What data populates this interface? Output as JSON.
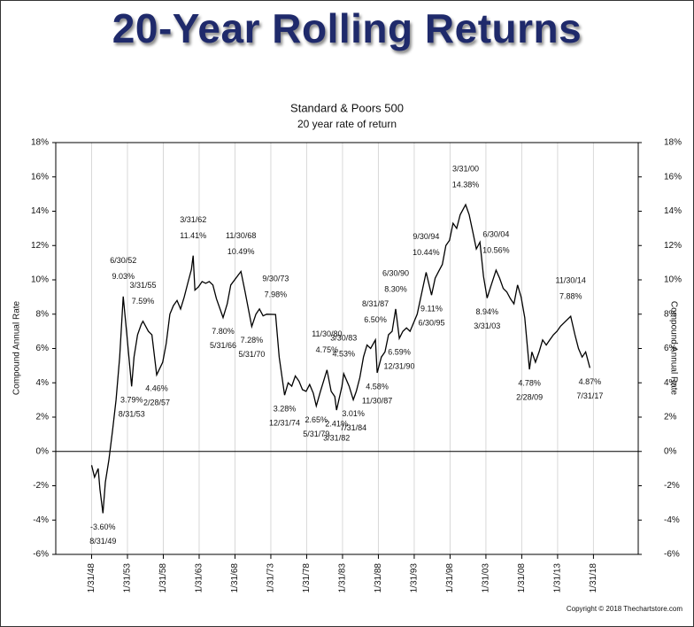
{
  "headline": "20-Year Rolling Returns",
  "chart_data": {
    "type": "line",
    "title": "Standard & Poors 500",
    "subtitle": "20 year rate of return",
    "ylabel": "Compound Annual Rate",
    "y2label": "Compound Annual Rate",
    "credit": "Copyright © 2018 Thechartstore.com",
    "xlim": [
      "1/31/43",
      "4/30/24"
    ],
    "xticks": [
      "1/31/48",
      "1/31/53",
      "1/31/58",
      "1/31/63",
      "1/31/68",
      "1/31/73",
      "1/31/78",
      "1/31/83",
      "1/31/88",
      "1/31/93",
      "1/31/98",
      "1/31/03",
      "1/31/08",
      "1/31/13",
      "1/31/18"
    ],
    "ylim": [
      -6,
      18
    ],
    "yticks": [
      {
        "value": -6,
        "label": "-6%"
      },
      {
        "value": -4,
        "label": "-4%"
      },
      {
        "value": -2,
        "label": "-2%"
      },
      {
        "value": 0,
        "label": "0%"
      },
      {
        "value": 2,
        "label": "2%"
      },
      {
        "value": 4,
        "label": "4%"
      },
      {
        "value": 6,
        "label": "6%"
      },
      {
        "value": 8,
        "label": "8%"
      },
      {
        "value": 10,
        "label": "10%"
      },
      {
        "value": 12,
        "label": "12%"
      },
      {
        "value": 14,
        "label": "14%"
      },
      {
        "value": 16,
        "label": "16%"
      },
      {
        "value": 18,
        "label": "18%"
      }
    ],
    "y2lim": [
      -6,
      18
    ],
    "y2ticks": [
      {
        "value": -6,
        "label": "-6%"
      },
      {
        "value": -4,
        "label": "-4%"
      },
      {
        "value": -2,
        "label": "-2%"
      },
      {
        "value": 0,
        "label": "0%"
      },
      {
        "value": 2,
        "label": "2%"
      },
      {
        "value": 4,
        "label": "4%"
      },
      {
        "value": 6,
        "label": "6%"
      },
      {
        "value": 8,
        "label": "8%"
      },
      {
        "value": 10,
        "label": "10%"
      },
      {
        "value": 12,
        "label": "12%"
      },
      {
        "value": 14,
        "label": "14%"
      },
      {
        "value": 16,
        "label": "16%"
      },
      {
        "value": 18,
        "label": "18%"
      }
    ],
    "grid": true,
    "series": [
      {
        "color": "#000000",
        "x": [
          "1/31/48",
          "6/30/48",
          "12/31/48",
          "3/31/49",
          "8/31/49",
          "12/31/49",
          "6/30/50",
          "12/31/50",
          "6/30/51",
          "12/31/51",
          "6/30/52",
          "12/31/52",
          "8/31/53",
          "12/31/53",
          "6/30/54",
          "12/31/54",
          "3/31/55",
          "12/31/55",
          "6/30/56",
          "2/28/57",
          "12/31/57",
          "6/30/58",
          "12/31/58",
          "6/30/59",
          "12/31/59",
          "6/30/60",
          "12/31/60",
          "6/30/61",
          "12/31/61",
          "3/31/62",
          "6/30/62",
          "12/31/62",
          "6/30/63",
          "12/31/63",
          "6/30/64",
          "12/31/64",
          "6/30/65",
          "5/31/66",
          "12/31/66",
          "6/30/67",
          "11/30/68",
          "6/30/69",
          "5/31/70",
          "12/31/70",
          "6/30/71",
          "12/31/71",
          "6/30/72",
          "9/30/73",
          "3/31/74",
          "12/31/74",
          "6/30/75",
          "12/31/75",
          "6/30/76",
          "12/31/76",
          "6/30/77",
          "12/31/77",
          "6/30/78",
          "12/31/78",
          "5/31/79",
          "12/31/79",
          "11/30/80",
          "6/30/81",
          "12/31/81",
          "3/31/82",
          "12/31/82",
          "3/30/83",
          "12/31/83",
          "7/31/84",
          "12/31/84",
          "6/30/85",
          "12/31/85",
          "6/30/86",
          "12/31/86",
          "8/31/87",
          "11/30/87",
          "6/30/88",
          "12/31/88",
          "6/30/89",
          "12/31/89",
          "6/30/90",
          "12/31/90",
          "6/30/91",
          "12/31/91",
          "6/30/92",
          "12/31/92",
          "6/30/93",
          "9/30/94",
          "6/30/95",
          "12/31/95",
          "6/30/96",
          "12/31/96",
          "6/30/97",
          "12/31/97",
          "6/30/98",
          "12/31/98",
          "6/30/99",
          "3/31/00",
          "9/30/00",
          "3/31/01",
          "9/30/01",
          "3/31/02",
          "9/30/02",
          "3/31/03",
          "9/30/03",
          "6/30/04",
          "12/31/04",
          "6/30/05",
          "12/31/05",
          "6/30/06",
          "12/31/06",
          "6/30/07",
          "12/31/07",
          "6/30/08",
          "2/28/09",
          "6/30/09",
          "12/31/09",
          "6/30/10",
          "12/31/10",
          "6/30/11",
          "12/31/11",
          "6/30/12",
          "12/31/12",
          "6/30/13",
          "11/30/14",
          "6/30/15",
          "12/31/15",
          "6/30/16",
          "12/31/16",
          "7/31/17"
        ],
        "values": [
          -0.8,
          -1.5,
          -1.0,
          -2.2,
          -3.6,
          -1.8,
          -0.5,
          1.2,
          3.0,
          5.5,
          9.03,
          6.8,
          3.79,
          5.5,
          6.8,
          7.4,
          7.59,
          7.0,
          6.8,
          4.46,
          5.2,
          6.3,
          8.0,
          8.5,
          8.8,
          8.3,
          9.0,
          9.8,
          10.6,
          11.41,
          9.4,
          9.6,
          9.9,
          9.8,
          9.9,
          9.7,
          8.9,
          7.8,
          8.6,
          9.7,
          10.49,
          9.3,
          7.28,
          8.0,
          8.3,
          7.9,
          8.0,
          7.98,
          5.5,
          3.28,
          4.0,
          3.8,
          4.4,
          4.1,
          3.6,
          3.5,
          3.9,
          3.4,
          2.65,
          3.5,
          4.75,
          3.5,
          3.2,
          2.41,
          3.8,
          4.53,
          3.8,
          3.01,
          3.5,
          4.3,
          5.5,
          6.2,
          6.0,
          6.5,
          4.58,
          5.5,
          5.8,
          6.8,
          7.0,
          8.3,
          6.59,
          7.0,
          7.2,
          7.0,
          7.5,
          8.0,
          10.44,
          9.11,
          10.1,
          10.5,
          10.9,
          12.0,
          12.3,
          13.3,
          13.0,
          13.8,
          14.38,
          13.8,
          12.8,
          11.8,
          12.2,
          10.2,
          8.94,
          9.6,
          10.56,
          10.1,
          9.5,
          9.3,
          8.9,
          8.6,
          9.7,
          9.0,
          7.8,
          4.78,
          5.8,
          5.2,
          5.8,
          6.5,
          6.2,
          6.5,
          6.8,
          7.0,
          7.3,
          7.88,
          6.8,
          6.0,
          5.5,
          5.8,
          4.87
        ]
      }
    ],
    "annotations": [
      {
        "x": "8/31/49",
        "value": -3.6,
        "label": "-3.60%"
      },
      {
        "x": "6/30/52",
        "value": 9.03,
        "label": "9.03%"
      },
      {
        "x": "8/31/53",
        "value": 3.79,
        "label": "3.79%"
      },
      {
        "x": "3/31/55",
        "value": 7.59,
        "label": "7.59%"
      },
      {
        "x": "2/28/57",
        "value": 4.46,
        "label": "4.46%"
      },
      {
        "x": "3/31/62",
        "value": 11.41,
        "label": "11.41%"
      },
      {
        "x": "5/31/66",
        "value": 7.8,
        "label": "7.80%"
      },
      {
        "x": "11/30/68",
        "value": 10.49,
        "label": "10.49%"
      },
      {
        "x": "5/31/70",
        "value": 7.28,
        "label": "7.28%"
      },
      {
        "x": "9/30/73",
        "value": 7.98,
        "label": "7.98%"
      },
      {
        "x": "12/31/74",
        "value": 3.28,
        "label": "3.28%"
      },
      {
        "x": "5/31/79",
        "value": 2.65,
        "label": "2.65%"
      },
      {
        "x": "11/30/80",
        "value": 4.75,
        "label": "4.75%"
      },
      {
        "x": "3/31/82",
        "value": 2.41,
        "label": "2.41%"
      },
      {
        "x": "3/30/83",
        "value": 4.53,
        "label": "4.53%"
      },
      {
        "x": "7/31/84",
        "value": 3.01,
        "label": "3.01%"
      },
      {
        "x": "8/31/87",
        "value": 6.5,
        "label": "6.50%"
      },
      {
        "x": "11/30/87",
        "value": 4.58,
        "label": "4.58%"
      },
      {
        "x": "6/30/90",
        "value": 8.3,
        "label": "8.30%"
      },
      {
        "x": "12/31/90",
        "value": 6.59,
        "label": "6.59%"
      },
      {
        "x": "9/30/94",
        "value": 10.44,
        "label": "10.44%"
      },
      {
        "x": "6/30/95",
        "value": 9.11,
        "label": "9.11%"
      },
      {
        "x": "3/31/00",
        "value": 14.38,
        "label": "14.38%"
      },
      {
        "x": "3/31/03",
        "value": 8.94,
        "label": "8.94%"
      },
      {
        "x": "6/30/04",
        "value": 10.56,
        "label": "10.56%"
      },
      {
        "x": "2/28/09",
        "value": 4.78,
        "label": "4.78%"
      },
      {
        "x": "11/30/14",
        "value": 7.88,
        "label": "7.88%"
      },
      {
        "x": "7/31/17",
        "value": 4.87,
        "label": "4.87%"
      }
    ]
  }
}
